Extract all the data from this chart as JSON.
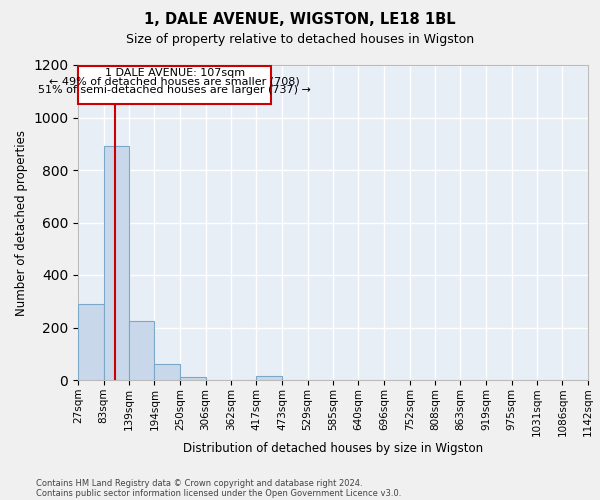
{
  "title1": "1, DALE AVENUE, WIGSTON, LE18 1BL",
  "title2": "Size of property relative to detached houses in Wigston",
  "xlabel": "Distribution of detached houses by size in Wigston",
  "ylabel": "Number of detached properties",
  "footer1": "Contains HM Land Registry data © Crown copyright and database right 2024.",
  "footer2": "Contains public sector information licensed under the Open Government Licence v3.0.",
  "annotation_line1": "1 DALE AVENUE: 107sqm",
  "annotation_line2": "← 49% of detached houses are smaller (708)",
  "annotation_line3": "51% of semi-detached houses are larger (737) →",
  "property_size": 107,
  "bin_edges": [
    27,
    83,
    139,
    194,
    250,
    306,
    362,
    417,
    473,
    529,
    585,
    640,
    696,
    752,
    808,
    863,
    919,
    975,
    1031,
    1086,
    1142
  ],
  "bar_heights": [
    290,
    890,
    225,
    60,
    10,
    0,
    0,
    15,
    0,
    0,
    0,
    0,
    0,
    0,
    0,
    0,
    0,
    0,
    0,
    0
  ],
  "bar_color": "#c8d8ea",
  "bar_edge_color": "#7aa8c8",
  "bg_color": "#e8eef6",
  "grid_color": "#ffffff",
  "red_line_color": "#cc0000",
  "annotation_box_color": "#cc0000",
  "fig_bg_color": "#f0f0f0",
  "ylim": [
    0,
    1200
  ],
  "yticks": [
    0,
    200,
    400,
    600,
    800,
    1000,
    1200
  ]
}
